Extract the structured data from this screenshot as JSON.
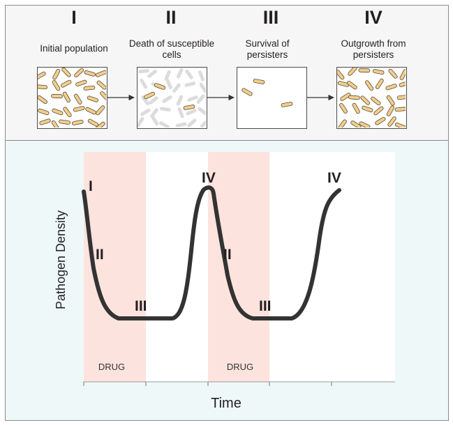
{
  "stages": [
    {
      "numeral": "I",
      "caption": "Initial population"
    },
    {
      "numeral": "II",
      "caption": "Death of susceptible cells"
    },
    {
      "numeral": "III",
      "caption": "Survival of persisters"
    },
    {
      "numeral": "IV",
      "caption": "Outgrowth from persisters"
    }
  ],
  "plot": {
    "ylabel": "Pathogen Density",
    "xlabel": "Time",
    "drug_label": "DRUG",
    "curve_labels": [
      "I",
      "II",
      "III",
      "IV",
      "II",
      "III",
      "IV"
    ]
  },
  "colors": {
    "bacteria": "#f0cf8c",
    "bacteria_outline": "#5a4a3a",
    "dead_bacteria": "#dcdcdc",
    "drug_band": "#fde3de",
    "curve": "#333333"
  }
}
